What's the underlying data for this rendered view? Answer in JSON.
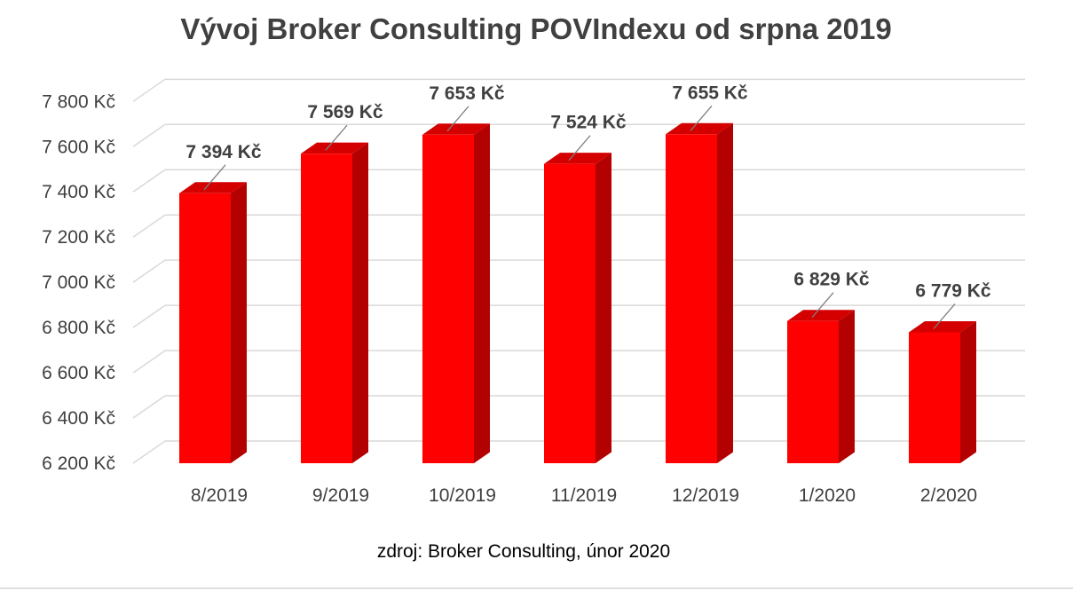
{
  "chart_data": {
    "type": "bar",
    "title": "Vývoj Broker Consulting POVIndexu od srpna 2019",
    "categories": [
      "8/2019",
      "9/2019",
      "10/2019",
      "11/2019",
      "12/2019",
      "1/2020",
      "2/2020"
    ],
    "values": [
      7394,
      7569,
      7653,
      7524,
      7655,
      6829,
      6779
    ],
    "value_labels": [
      "7 394 Kč",
      "7 569 Kč",
      "7 653 Kč",
      "7 524 Kč",
      "7 655 Kč",
      "6 829 Kč",
      "6 779 Kč"
    ],
    "ylim": [
      6200,
      7800
    ],
    "yticks": [
      6200,
      6400,
      6600,
      6800,
      7000,
      7200,
      7400,
      7600,
      7800
    ],
    "ytick_labels": [
      "6 200 Kč",
      "6 400 Kč",
      "6 600 Kč",
      "6 800 Kč",
      "7 000 Kč",
      "7 200 Kč",
      "7 400 Kč",
      "7 600 Kč",
      "7 800 Kč"
    ],
    "xlabel": "",
    "ylabel": "",
    "grid": true,
    "legend": "none",
    "style": "3d-column",
    "bar_color": "#ff0000",
    "bar_side_color": "#b30000",
    "bar_top_color": "#d40000"
  },
  "source_note": "zdroj: Broker Consulting, únor 2020"
}
